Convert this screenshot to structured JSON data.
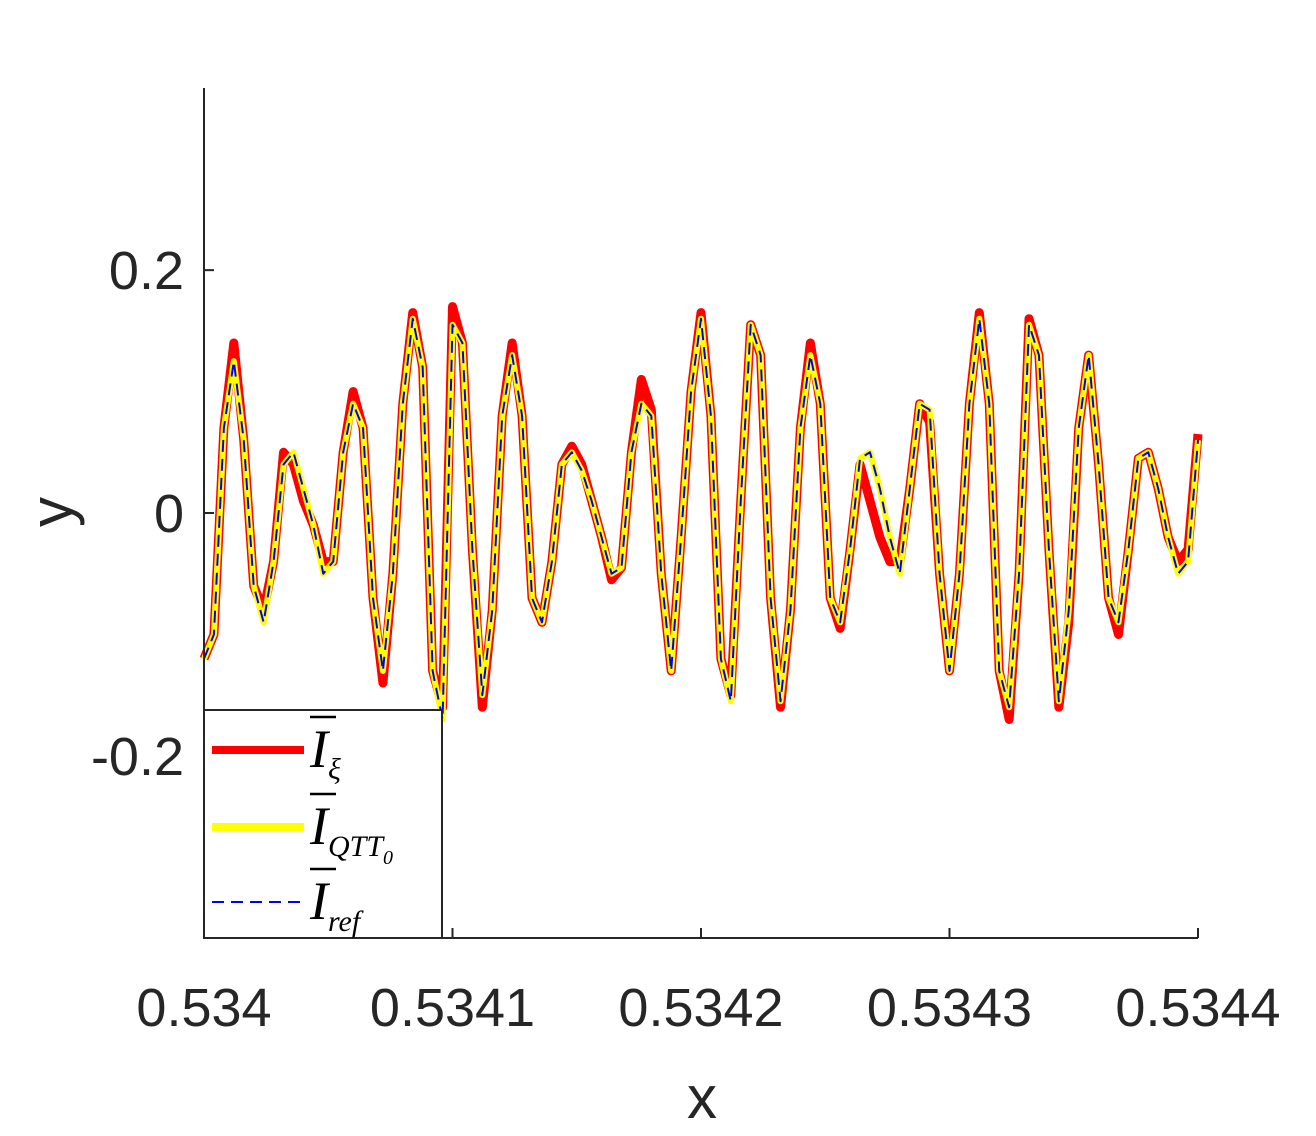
{
  "chart_data": {
    "type": "line",
    "xlabel": "x",
    "ylabel": "y",
    "xlim": [
      0.534,
      0.5344
    ],
    "ylim": [
      -0.35,
      0.35
    ],
    "xticks": [
      0.534,
      0.5341,
      0.5342,
      0.5343,
      0.5344
    ],
    "xtick_labels": [
      "0.534",
      "0.5341",
      "0.5342",
      "0.5343",
      "0.5344"
    ],
    "yticks": [
      -0.2,
      0,
      0.2
    ],
    "ytick_labels": [
      "-0.2",
      "0",
      "0.2"
    ],
    "grid": false,
    "legend_position": "bottom-left",
    "x": [
      0.534,
      0.534004,
      0.534008,
      0.534012,
      0.534016,
      0.53402,
      0.534024,
      0.534028,
      0.534032,
      0.534036,
      0.53404,
      0.534044,
      0.534048,
      0.534052,
      0.534056,
      0.53406,
      0.534064,
      0.534068,
      0.534072,
      0.534076,
      0.53408,
      0.534084,
      0.534088,
      0.534092,
      0.534096,
      0.5341,
      0.534104,
      0.534108,
      0.534112,
      0.534116,
      0.53412,
      0.534124,
      0.534128,
      0.534132,
      0.534136,
      0.53414,
      0.534144,
      0.534148,
      0.534152,
      0.534156,
      0.53416,
      0.534164,
      0.534168,
      0.534172,
      0.534176,
      0.53418,
      0.534184,
      0.534188,
      0.534192,
      0.534196,
      0.5342,
      0.534204,
      0.534208,
      0.534212,
      0.534216,
      0.53422,
      0.534224,
      0.534228,
      0.534232,
      0.534236,
      0.53424,
      0.534244,
      0.534248,
      0.534252,
      0.534256,
      0.53426,
      0.534264,
      0.534268,
      0.534272,
      0.534276,
      0.53428,
      0.534284,
      0.534288,
      0.534292,
      0.534296,
      0.5343,
      0.534304,
      0.534308,
      0.534312,
      0.534316,
      0.53432,
      0.534324,
      0.534328,
      0.534332,
      0.534336,
      0.53434,
      0.534344,
      0.534348,
      0.534352,
      0.534356,
      0.53436,
      0.534364,
      0.534368,
      0.534372,
      0.534376,
      0.53438,
      0.534384,
      0.534388,
      0.534392,
      0.534396,
      0.5344
    ],
    "series": [
      {
        "name": "I_ξ",
        "color": "#ff0000",
        "style": "solid-thick",
        "values": [
          -0.12,
          -0.1,
          0.07,
          0.14,
          0.06,
          -0.06,
          -0.08,
          -0.04,
          0.05,
          0.04,
          0.01,
          -0.01,
          -0.04,
          -0.04,
          0.05,
          0.1,
          0.07,
          -0.07,
          -0.14,
          -0.05,
          0.09,
          0.165,
          0.12,
          -0.13,
          -0.16,
          0.17,
          0.14,
          -0.03,
          -0.16,
          -0.08,
          0.08,
          0.14,
          0.08,
          -0.07,
          -0.09,
          -0.04,
          0.04,
          0.055,
          0.04,
          0.01,
          -0.02,
          -0.055,
          -0.045,
          0.05,
          0.11,
          0.085,
          -0.05,
          -0.13,
          -0.02,
          0.1,
          0.165,
          0.08,
          -0.12,
          -0.15,
          0.01,
          0.155,
          0.13,
          -0.07,
          -0.16,
          -0.08,
          0.07,
          0.14,
          0.09,
          -0.07,
          -0.095,
          -0.03,
          0.04,
          0.01,
          -0.02,
          -0.04,
          -0.04,
          0.02,
          0.09,
          0.075,
          -0.05,
          -0.13,
          -0.05,
          0.09,
          0.165,
          0.09,
          -0.13,
          -0.17,
          -0.05,
          0.16,
          0.13,
          -0.03,
          -0.16,
          -0.09,
          0.07,
          0.13,
          0.04,
          -0.07,
          -0.1,
          -0.03,
          0.045,
          0.05,
          0.02,
          -0.02,
          -0.04,
          -0.03,
          0.065
        ]
      },
      {
        "name": "I_QTT0",
        "color": "#ffff00",
        "style": "solid-thick",
        "values": [
          -0.12,
          -0.1,
          0.07,
          0.125,
          0.06,
          -0.06,
          -0.09,
          -0.04,
          0.04,
          0.05,
          0.02,
          -0.01,
          -0.05,
          -0.04,
          0.05,
          0.09,
          0.07,
          -0.07,
          -0.13,
          -0.05,
          0.09,
          0.16,
          0.12,
          -0.13,
          -0.17,
          0.155,
          0.14,
          -0.03,
          -0.15,
          -0.08,
          0.08,
          0.13,
          0.08,
          -0.07,
          -0.09,
          -0.04,
          0.04,
          0.05,
          0.035,
          0.01,
          -0.02,
          -0.05,
          -0.045,
          0.05,
          0.09,
          0.08,
          -0.05,
          -0.13,
          -0.02,
          0.1,
          0.16,
          0.08,
          -0.12,
          -0.155,
          0.01,
          0.155,
          0.13,
          -0.07,
          -0.155,
          -0.08,
          0.07,
          0.13,
          0.09,
          -0.07,
          -0.09,
          -0.03,
          0.045,
          0.05,
          0.02,
          -0.02,
          -0.05,
          0.02,
          0.09,
          0.085,
          -0.05,
          -0.13,
          -0.05,
          0.09,
          0.16,
          0.09,
          -0.13,
          -0.16,
          -0.05,
          0.155,
          0.13,
          -0.03,
          -0.155,
          -0.08,
          0.07,
          0.13,
          0.04,
          -0.07,
          -0.09,
          -0.03,
          0.045,
          0.05,
          0.02,
          -0.02,
          -0.05,
          -0.04,
          0.06
        ]
      },
      {
        "name": "I_ref",
        "color": "#0000ff",
        "style": "dashed",
        "values": [
          -0.12,
          -0.1,
          0.07,
          0.125,
          0.06,
          -0.06,
          -0.09,
          -0.04,
          0.04,
          0.05,
          0.02,
          -0.01,
          -0.05,
          -0.04,
          0.05,
          0.09,
          0.07,
          -0.07,
          -0.13,
          -0.05,
          0.09,
          0.16,
          0.12,
          -0.13,
          -0.17,
          0.155,
          0.14,
          -0.03,
          -0.15,
          -0.08,
          0.08,
          0.13,
          0.08,
          -0.07,
          -0.09,
          -0.04,
          0.04,
          0.05,
          0.035,
          0.01,
          -0.02,
          -0.05,
          -0.045,
          0.05,
          0.09,
          0.08,
          -0.05,
          -0.13,
          -0.02,
          0.1,
          0.16,
          0.08,
          -0.12,
          -0.155,
          0.01,
          0.155,
          0.13,
          -0.07,
          -0.155,
          -0.08,
          0.07,
          0.13,
          0.09,
          -0.07,
          -0.09,
          -0.03,
          0.045,
          0.05,
          0.02,
          -0.02,
          -0.05,
          0.02,
          0.09,
          0.085,
          -0.05,
          -0.13,
          -0.05,
          0.09,
          0.16,
          0.09,
          -0.13,
          -0.16,
          -0.05,
          0.155,
          0.13,
          -0.03,
          -0.155,
          -0.08,
          0.07,
          0.13,
          0.04,
          -0.07,
          -0.09,
          -0.03,
          0.045,
          0.05,
          0.02,
          -0.02,
          -0.05,
          -0.04,
          0.06
        ]
      }
    ],
    "legend": [
      {
        "symbol": "I",
        "subscript": "ξ",
        "subsub": ""
      },
      {
        "symbol": "I",
        "subscript": "QTT",
        "subsub": "0"
      },
      {
        "symbol": "I",
        "subscript": "ref",
        "subsub": ""
      }
    ]
  }
}
